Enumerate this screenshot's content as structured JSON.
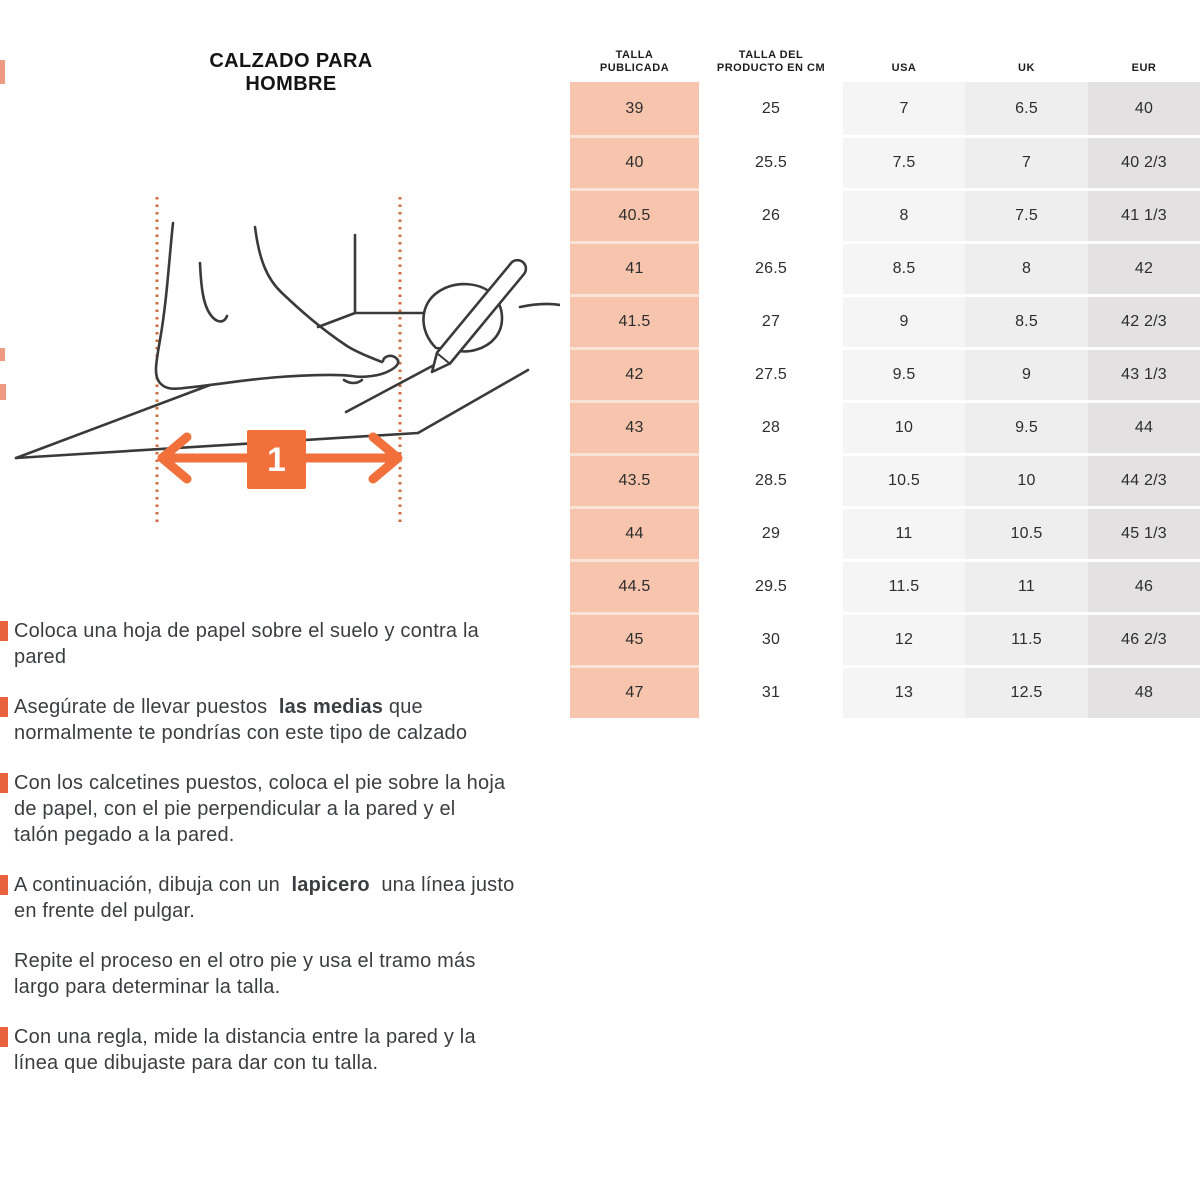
{
  "title": "CALZADO PARA HOMBRE",
  "colors": {
    "accent_orange": "#f2703c",
    "bullet_orange": "#e8623d",
    "dash_orange": "#cf6e41",
    "line_dark": "#3a3a3a",
    "text_dark": "#3b3e41",
    "col_salmon": "#f7c5ad",
    "col_white": "#ffffff",
    "col_gray_light": "#f6f5f6",
    "col_gray_mid": "#efeeef",
    "col_gray_dark": "#e3e1e2"
  },
  "illustration": {
    "step_badge": "1"
  },
  "table": {
    "columns": [
      {
        "label": "TALLA\nPUBLICADA",
        "bg": "#f7c5ad"
      },
      {
        "label": "TALLA DEL\nPRODUCTO EN CM",
        "bg": "#ffffff"
      },
      {
        "label": "USA",
        "bg": "#f6f5f6"
      },
      {
        "label": "UK",
        "bg": "#efeeef"
      },
      {
        "label": "EUR",
        "bg": "#e3e1e2"
      }
    ],
    "rows": [
      [
        "39",
        "25",
        "7",
        "6.5",
        "40"
      ],
      [
        "40",
        "25.5",
        "7.5",
        "7",
        "40 2/3"
      ],
      [
        "40.5",
        "26",
        "8",
        "7.5",
        "41 1/3"
      ],
      [
        "41",
        "26.5",
        "8.5",
        "8",
        "42"
      ],
      [
        "41.5",
        "27",
        "9",
        "8.5",
        "42 2/3"
      ],
      [
        "42",
        "27.5",
        "9.5",
        "9",
        "43 1/3"
      ],
      [
        "43",
        "28",
        "10",
        "9.5",
        "44"
      ],
      [
        "43.5",
        "28.5",
        "10.5",
        "10",
        "44 2/3"
      ],
      [
        "44",
        "29",
        "11",
        "10.5",
        "45 1/3"
      ],
      [
        "44.5",
        "29.5",
        "11.5",
        "11",
        "46"
      ],
      [
        "45",
        "30",
        "12",
        "11.5",
        "46 2/3"
      ],
      [
        "47",
        "31",
        "13",
        "12.5",
        "48"
      ]
    ]
  },
  "instructions": [
    {
      "bullet": true,
      "lines": [
        [
          {
            "text": "Coloca una hoja de papel sobre el suelo y contra la"
          }
        ],
        [
          {
            "text": "pared"
          }
        ]
      ]
    },
    {
      "bullet": true,
      "lines": [
        [
          {
            "text": "Asegúrate de llevar puestos  "
          },
          {
            "text": "las medias",
            "bold": true
          },
          {
            "text": " que"
          }
        ],
        [
          {
            "text": "normalmente te pondrías con este tipo de calzado"
          }
        ]
      ]
    },
    {
      "bullet": true,
      "lines": [
        [
          {
            "text": "Con los calcetines puestos, coloca el pie sobre la hoja"
          }
        ],
        [
          {
            "text": "de papel, con el pie perpendicular a la pared y el"
          }
        ],
        [
          {
            "text": "talón pegado a la pared."
          }
        ]
      ]
    },
    {
      "bullet": true,
      "lines": [
        [
          {
            "text": "A continuación, dibuja con un  "
          },
          {
            "text": "lapicero",
            "bold": true
          },
          {
            "text": "  una línea justo"
          }
        ],
        [
          {
            "text": "en frente del pulgar."
          }
        ]
      ]
    },
    {
      "bullet": false,
      "lines": [
        [
          {
            "text": "Repite el proceso en el otro pie y usa el tramo más"
          }
        ],
        [
          {
            "text": "largo para determinar la talla."
          }
        ]
      ]
    },
    {
      "bullet": true,
      "lines": [
        [
          {
            "text": "Con una regla, mide la distancia entre la pared y la"
          }
        ],
        [
          {
            "text": "línea que dibujaste para dar con tu talla."
          }
        ]
      ]
    }
  ]
}
